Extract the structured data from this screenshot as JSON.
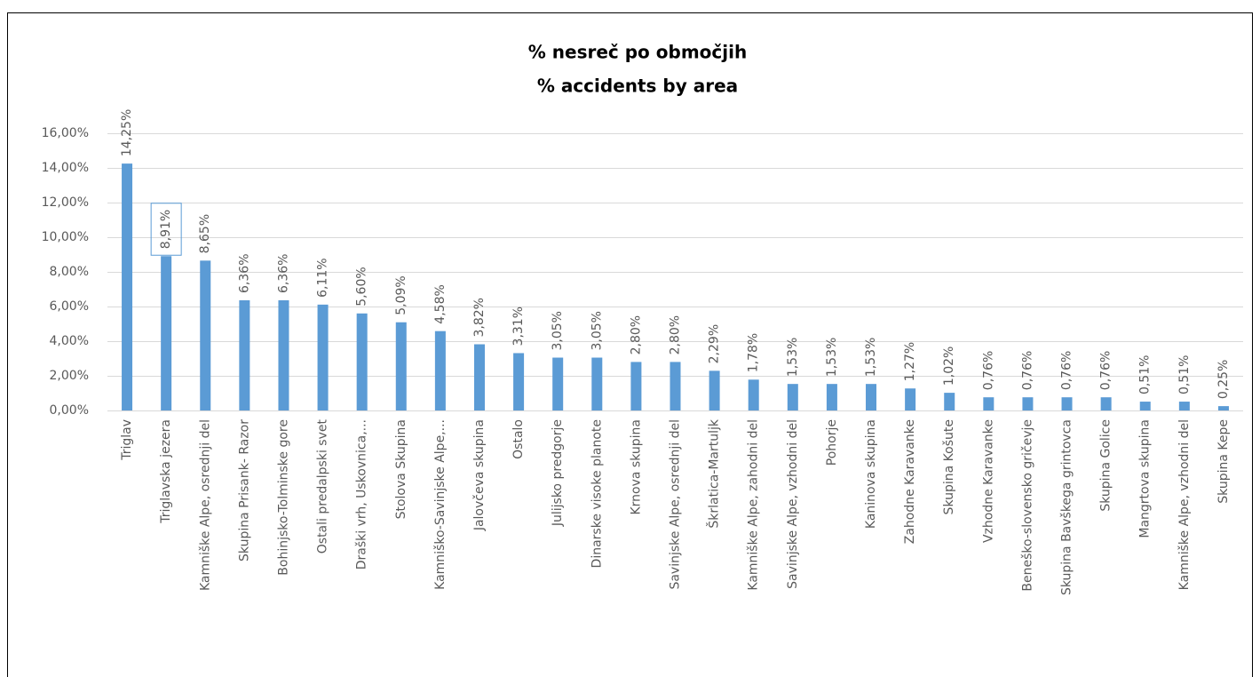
{
  "chart_data": {
    "type": "bar",
    "title": "% nesreč po območjih",
    "subtitle": "% accidents by area",
    "categories": [
      "Triglav",
      "Triglavska jezera",
      "Kamniške Alpe, osrednji del",
      "Skupina Prisank- Razor",
      "Bohinjsko-Tolminske gore",
      "Ostali predalpski svet",
      "Draški vrh, Uskovnica,...",
      "Stolova Skupina",
      "Kamniško-Savinjske Alpe,...",
      "Jalovčeva skupina",
      "Ostalo",
      "Julijsko predgorje",
      "Dinarske visoke planote",
      "Krnova skupina",
      "Savinjske Alpe, osrednji del",
      "Škrlatica-Martuljk",
      "Kamniške Alpe, zahodni del",
      "Savinjske Alpe, vzhodni del",
      "Pohorje",
      "Kaninova skupina",
      "Zahodne Karavanke",
      "Skupina Košute",
      "Vzhodne Karavanke",
      "Beneško-slovensko gričevje",
      "Skupina Bavškega grintovca",
      "Skupina Golice",
      "Mangrtova skupina",
      "Kamniške Alpe, vzhodni del",
      "Skupina Kepe"
    ],
    "values": [
      14.25,
      8.91,
      8.65,
      6.36,
      6.36,
      6.11,
      5.6,
      5.09,
      4.58,
      3.82,
      3.31,
      3.05,
      3.05,
      2.8,
      2.8,
      2.29,
      1.78,
      1.53,
      1.53,
      1.53,
      1.27,
      1.02,
      0.76,
      0.76,
      0.76,
      0.76,
      0.51,
      0.51,
      0.25
    ],
    "value_labels": [
      "14,25%",
      "8,91%",
      "8,65%",
      "6,36%",
      "6,36%",
      "6,11%",
      "5,60%",
      "5,09%",
      "4,58%",
      "3,82%",
      "3,31%",
      "3,05%",
      "3,05%",
      "2,80%",
      "2,80%",
      "2,29%",
      "1,78%",
      "1,53%",
      "1,53%",
      "1,53%",
      "1,27%",
      "1,02%",
      "0,76%",
      "0,76%",
      "0,76%",
      "0,76%",
      "0,51%",
      "0,51%",
      "0,25%"
    ],
    "color": "#5b9bd5",
    "ylim": [
      0,
      16
    ],
    "yticks": [
      {
        "value": 0,
        "label": "0,00%"
      },
      {
        "value": 2,
        "label": "2,00%"
      },
      {
        "value": 4,
        "label": "4,00%"
      },
      {
        "value": 6,
        "label": "6,00%"
      },
      {
        "value": 8,
        "label": "8,00%"
      },
      {
        "value": 10,
        "label": "10,00%"
      },
      {
        "value": 12,
        "label": "12,00%"
      },
      {
        "value": 14,
        "label": "14,00%"
      },
      {
        "value": 16,
        "label": "16,00%"
      }
    ],
    "grid": true
  }
}
